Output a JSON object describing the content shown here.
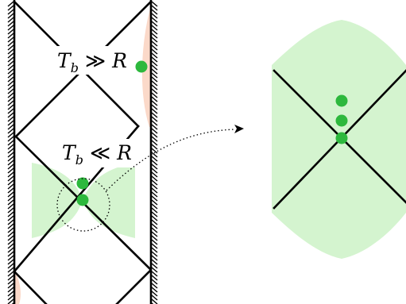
{
  "labels": {
    "upper": {
      "base": "T",
      "sub": "b",
      "relation": "≫",
      "rhs": "R"
    },
    "lower": {
      "base": "T",
      "sub": "b",
      "relation": "≪",
      "rhs": "R"
    }
  },
  "colors": {
    "line": "#000000",
    "dot": "#2db83d",
    "light_green": "#d4f4cf",
    "salmon": "#fbd9c9",
    "background": "#ffffff"
  }
}
